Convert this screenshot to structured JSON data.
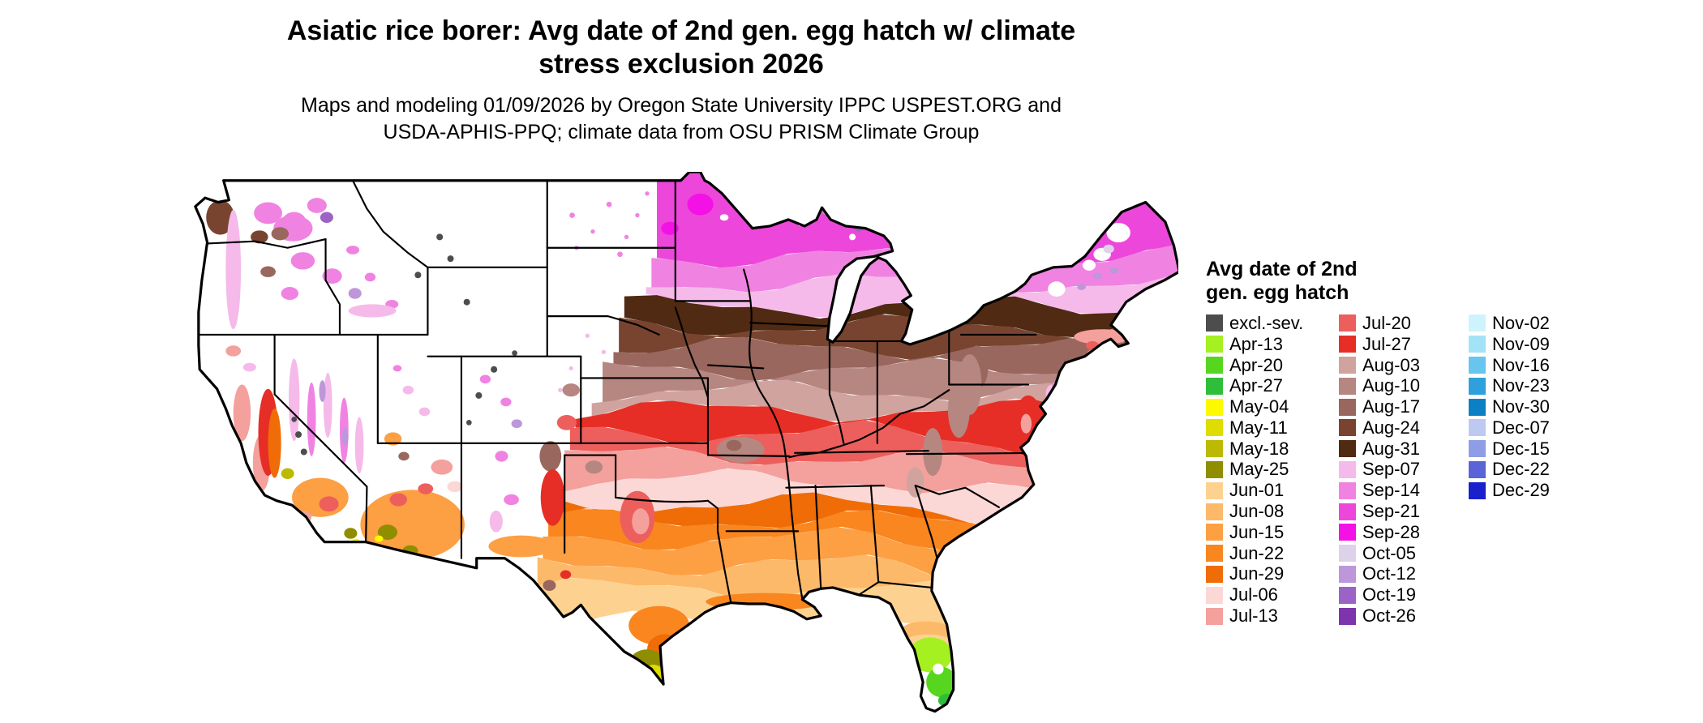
{
  "header": {
    "title_line1": "Asiatic rice borer: Avg date of 2nd gen. egg hatch w/ climate",
    "title_line2": "stress exclusion 2026",
    "subtitle_line1": "Maps and modeling 01/09/2026 by Oregon State University IPPC USPEST.ORG and",
    "subtitle_line2": "USDA-APHIS-PPQ; climate data from OSU PRISM Climate Group"
  },
  "legend": {
    "title_line1": "Avg date of 2nd",
    "title_line2": "gen. egg hatch",
    "columns": [
      [
        {
          "label": "excl.-sev.",
          "color": "#4d4d4d"
        },
        {
          "label": "Apr-13",
          "color": "#a4f021"
        },
        {
          "label": "Apr-20",
          "color": "#57d61f"
        },
        {
          "label": "Apr-27",
          "color": "#2fbe3a"
        },
        {
          "label": "May-04",
          "color": "#fdf900"
        },
        {
          "label": "May-11",
          "color": "#dedc00"
        },
        {
          "label": "May-18",
          "color": "#bcba00"
        },
        {
          "label": "May-25",
          "color": "#8f8d00"
        },
        {
          "label": "Jun-01",
          "color": "#fdd291"
        },
        {
          "label": "Jun-08",
          "color": "#fdb96a"
        },
        {
          "label": "Jun-15",
          "color": "#fd9f43"
        },
        {
          "label": "Jun-22",
          "color": "#f9861f"
        },
        {
          "label": "Jun-29",
          "color": "#ef6c07"
        },
        {
          "label": "Jul-06",
          "color": "#fbd8d5"
        },
        {
          "label": "Jul-13",
          "color": "#f4a09d"
        }
      ],
      [
        {
          "label": "Jul-20",
          "color": "#ed5f5c"
        },
        {
          "label": "Jul-27",
          "color": "#e62e26"
        },
        {
          "label": "Aug-03",
          "color": "#d0a39e"
        },
        {
          "label": "Aug-10",
          "color": "#b68681"
        },
        {
          "label": "Aug-17",
          "color": "#99675d"
        },
        {
          "label": "Aug-24",
          "color": "#784430"
        },
        {
          "label": "Aug-31",
          "color": "#502a12"
        },
        {
          "label": "Sep-07",
          "color": "#f5bae9"
        },
        {
          "label": "Sep-14",
          "color": "#f083e2"
        },
        {
          "label": "Sep-21",
          "color": "#ec47da"
        },
        {
          "label": "Sep-28",
          "color": "#f411e6"
        },
        {
          "label": "Oct-05",
          "color": "#ded2ea"
        },
        {
          "label": "Oct-12",
          "color": "#bd97da"
        },
        {
          "label": "Oct-19",
          "color": "#9c63c6"
        },
        {
          "label": "Oct-26",
          "color": "#7c35ac"
        }
      ],
      [
        {
          "label": "Nov-02",
          "color": "#cdf4fd"
        },
        {
          "label": "Nov-09",
          "color": "#a2e3f8"
        },
        {
          "label": "Nov-16",
          "color": "#66c6ee"
        },
        {
          "label": "Nov-23",
          "color": "#2fa0dc"
        },
        {
          "label": "Nov-30",
          "color": "#0b80c4"
        },
        {
          "label": "Dec-07",
          "color": "#bdc9f0"
        },
        {
          "label": "Dec-15",
          "color": "#8f9de6"
        },
        {
          "label": "Dec-22",
          "color": "#5a63d8"
        },
        {
          "label": "Dec-29",
          "color": "#1b20cd"
        }
      ]
    ]
  }
}
